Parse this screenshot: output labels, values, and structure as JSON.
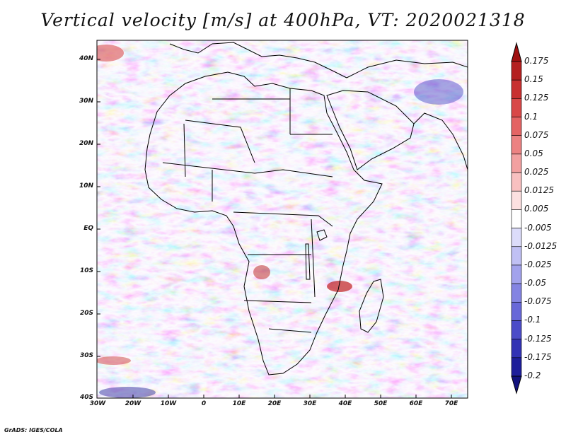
{
  "title": "Vertical velocity [m/s] at 400hPa, VT: 2020021318",
  "map": {
    "lat_ticks": [
      "40N",
      "30N",
      "20N",
      "10N",
      "EQ",
      "10S",
      "20S",
      "30S",
      "40S"
    ],
    "lon_ticks": [
      "30W",
      "20W",
      "10W",
      "0",
      "10E",
      "20E",
      "30E",
      "40E",
      "50E",
      "60E",
      "70E"
    ],
    "lat_range": [
      -40,
      45
    ],
    "lon_range": [
      -30,
      75
    ]
  },
  "colorbar": {
    "labels": [
      "0.175",
      "0.15",
      "0.125",
      "0.1",
      "0.075",
      "0.05",
      "0.025",
      "0.0125",
      "0.005",
      "-0.005",
      "-0.0125",
      "-0.025",
      "-0.05",
      "-0.075",
      "-0.1",
      "-0.125",
      "-0.175",
      "-0.2"
    ],
    "colors": [
      "#a01010",
      "#b42020",
      "#c83030",
      "#d84848",
      "#e46464",
      "#ec8282",
      "#f2a0a0",
      "#f8c0c0",
      "#fce0e0",
      "#ffffff",
      "#dcdcfa",
      "#c0c0f4",
      "#a2a2ec",
      "#8484e2",
      "#6868d8",
      "#4c4cc8",
      "#3232b4",
      "#1e1e9a",
      "#12127e"
    ]
  },
  "footer": "GrADS: IGES/COLA"
}
